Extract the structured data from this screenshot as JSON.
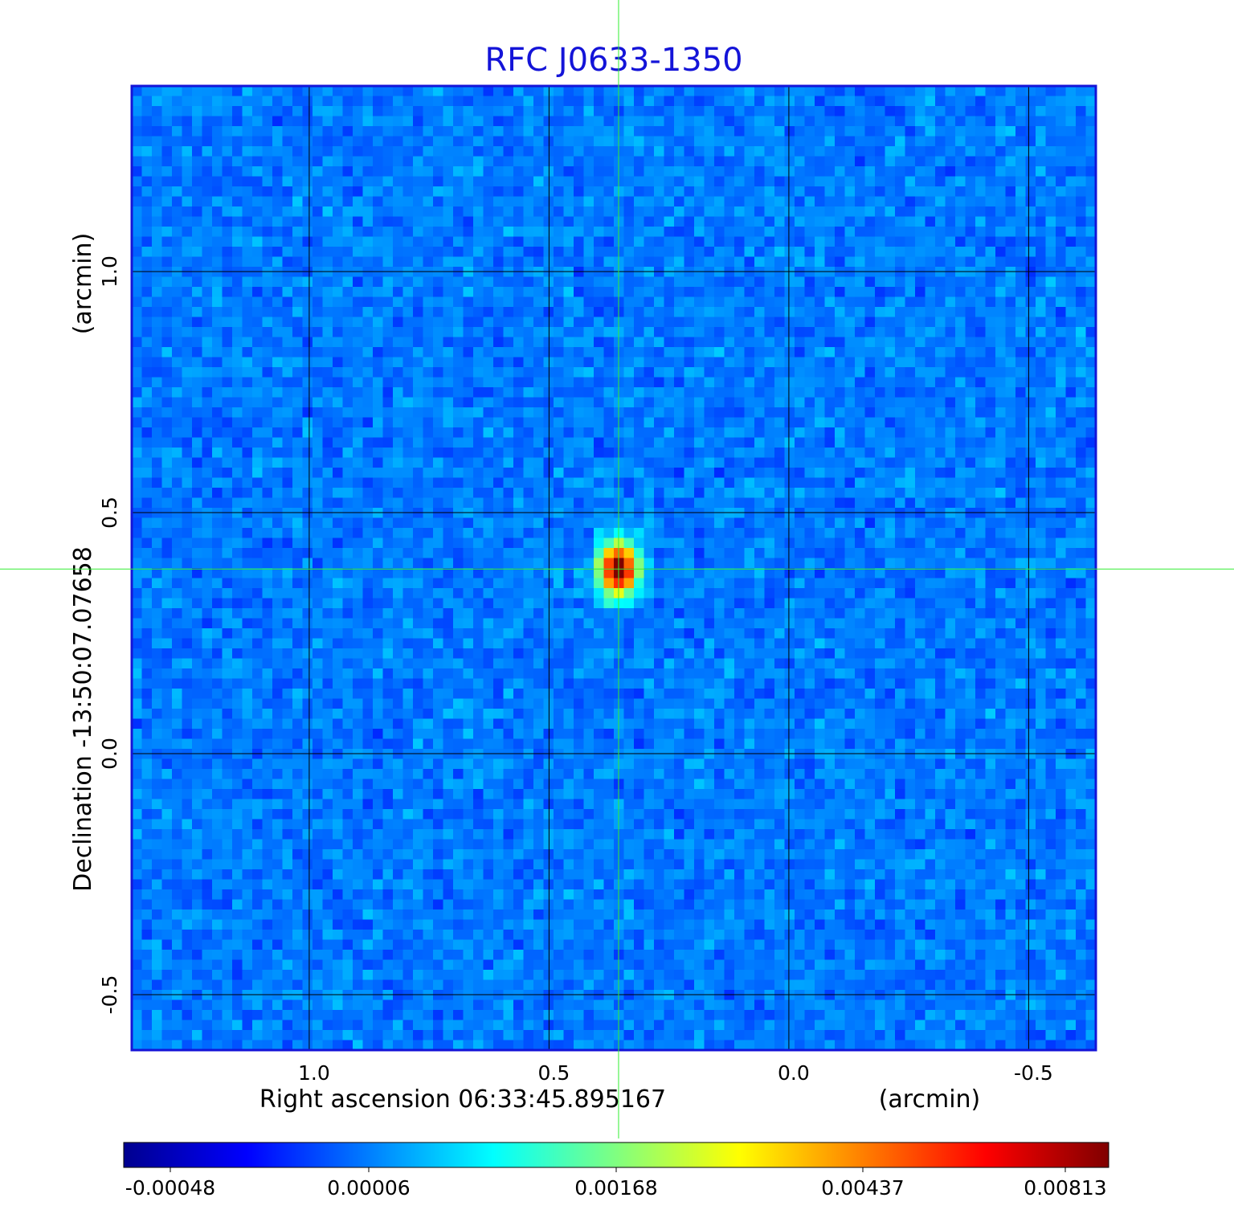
{
  "chart_data": {
    "type": "heatmap",
    "title": "RFC J0633-1350",
    "xlabel": "Right ascension  06:33:45.895167",
    "xunit": "(arcmin)",
    "ylabel": "Declination  -13:50:07.07658",
    "yunit": "(arcmin)",
    "x_ticks": [
      {
        "value": 1.0,
        "label": "1.0"
      },
      {
        "value": 0.5,
        "label": "0.5"
      },
      {
        "value": 0.0,
        "label": "0.0"
      },
      {
        "value": -0.5,
        "label": "-0.5"
      }
    ],
    "y_ticks": [
      {
        "value": 1.0,
        "label": "1.0"
      },
      {
        "value": 0.5,
        "label": "0.5"
      },
      {
        "value": 0.0,
        "label": "0.0"
      },
      {
        "value": -0.5,
        "label": "-0.5"
      }
    ],
    "xlim": [
      1.37,
      -0.64
    ],
    "ylim": [
      -0.615,
      1.385
    ],
    "grid": true,
    "crosshair": {
      "x": 0.355,
      "y": 0.383,
      "color": "#33ee33"
    },
    "source": {
      "x": 0.355,
      "y": 0.383,
      "peak": 0.00813,
      "width": 0.05,
      "height": 0.07
    },
    "colormap": "jet",
    "colorbar": {
      "ticks": [
        {
          "value": -0.00048,
          "label": "-0.00048"
        },
        {
          "value": 6e-05,
          "label": "0.00006"
        },
        {
          "value": 0.00168,
          "label": "0.00168"
        },
        {
          "value": 0.00437,
          "label": "0.00437"
        },
        {
          "value": 0.00813,
          "label": "0.00813"
        }
      ]
    },
    "frame_color": "#1414d8"
  }
}
